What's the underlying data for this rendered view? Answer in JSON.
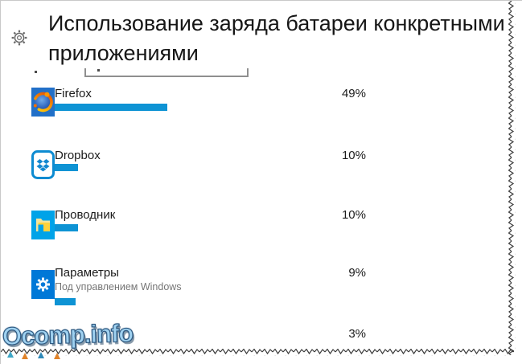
{
  "header": {
    "title": "Использование заряда батареи конкретными приложениями"
  },
  "apps": [
    {
      "name": "Firefox",
      "icon": "firefox-logo",
      "percent_label": "49%",
      "percent_value": 49,
      "subtitle": ""
    },
    {
      "name": "Dropbox",
      "icon": "dropbox-logo",
      "percent_label": "10%",
      "percent_value": 10,
      "subtitle": ""
    },
    {
      "name": "Проводник",
      "icon": "file-explorer-folder",
      "percent_label": "10%",
      "percent_value": 10,
      "subtitle": ""
    },
    {
      "name": "Параметры",
      "icon": "windows-settings-gear",
      "percent_label": "9%",
      "percent_value": 9,
      "subtitle": "Под управлением Windows"
    },
    {
      "name": "",
      "icon": "",
      "percent_label": "3%",
      "percent_value": 3,
      "subtitle": ""
    }
  ],
  "icons": {
    "header": "gear-outline-icon"
  },
  "watermark": {
    "text": "Ocomp.info"
  },
  "colors": {
    "usage_bar": "#0e93d4",
    "settings_tile": "#0078d7",
    "explorer_tile": "#00a3e8",
    "firefox_tile": "#2270c8",
    "dropbox_blue": "#0d8bd1",
    "subtitle_gray": "#767676",
    "torn_edge": "#3c3c3c"
  }
}
